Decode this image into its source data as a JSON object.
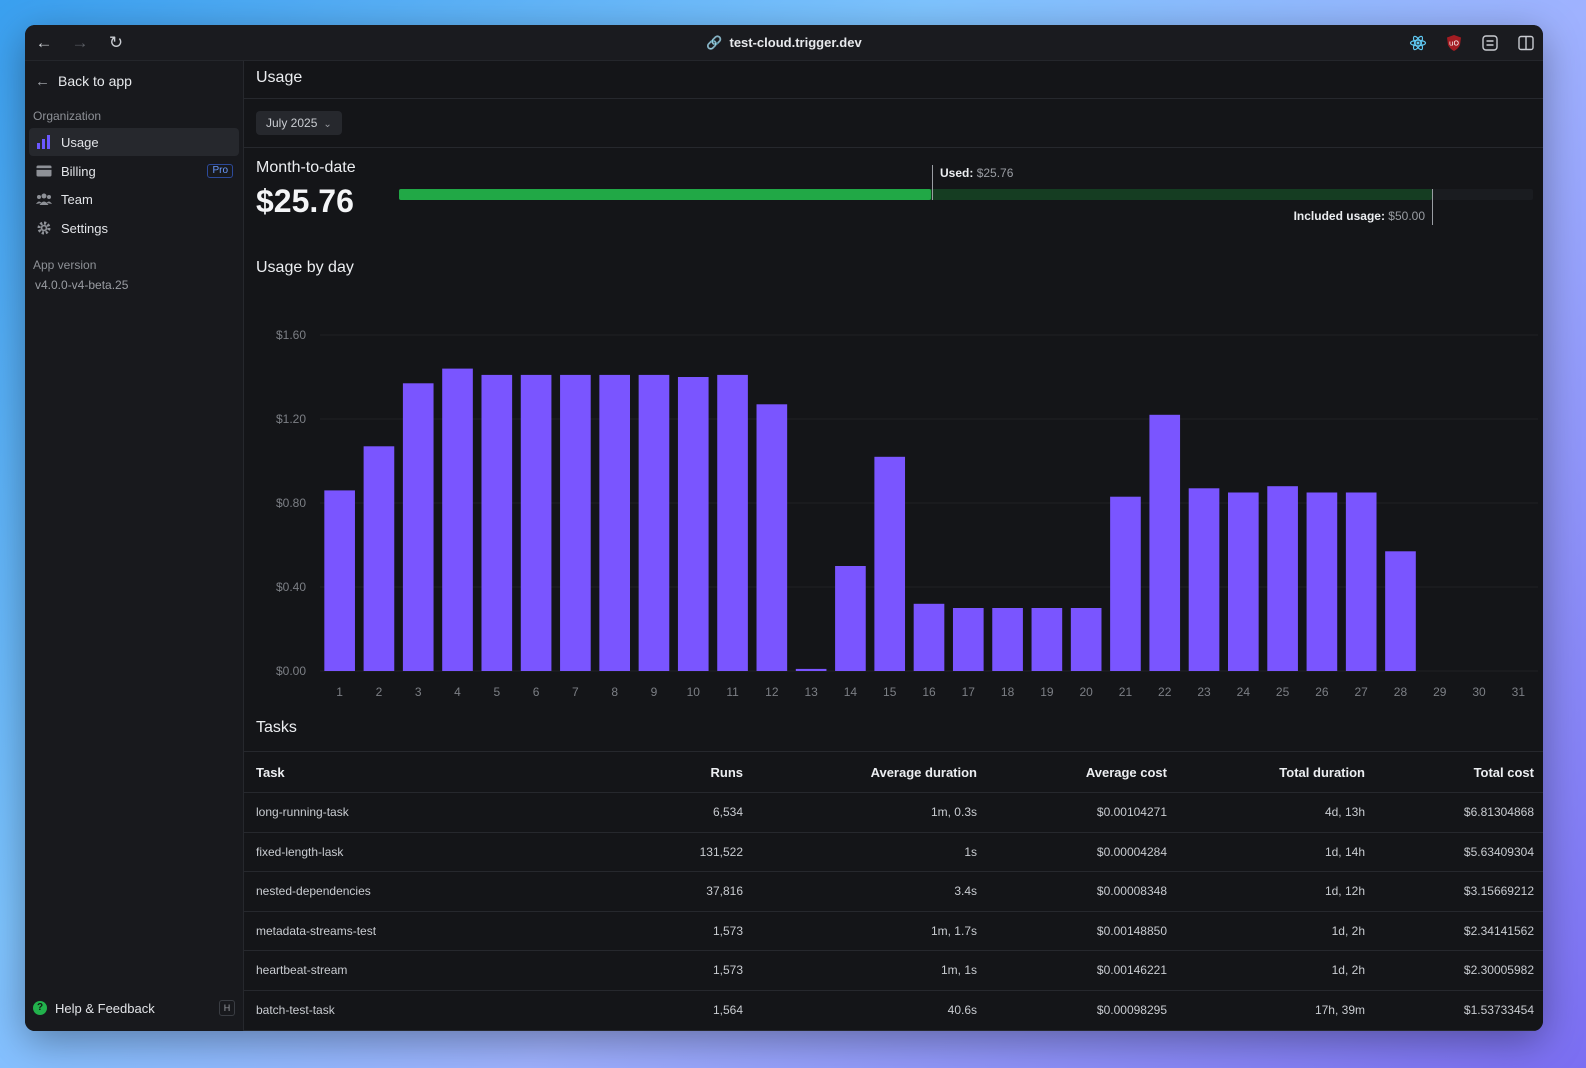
{
  "browser": {
    "url": "test-cloud.trigger.dev"
  },
  "sidebar": {
    "back_label": "Back to app",
    "org_section": "Organization",
    "items": [
      {
        "label": "Usage",
        "icon": "bar-chart-icon"
      },
      {
        "label": "Billing",
        "icon": "credit-card-icon",
        "badge": "Pro"
      },
      {
        "label": "Team",
        "icon": "users-icon"
      },
      {
        "label": "Settings",
        "icon": "gear-icon"
      }
    ],
    "version_label": "App version",
    "version": "v4.0.0-v4-beta.25",
    "help_label": "Help & Feedback",
    "help_shortcut": "H"
  },
  "page": {
    "title": "Usage",
    "month": "July 2025",
    "mtd_label": "Month-to-date",
    "mtd_value": "$25.76",
    "used_key": "Used:",
    "used_value": "$25.76",
    "included_key": "Included usage:",
    "included_value": "$50.00",
    "used_amount": 25.76,
    "included_amount": 50.0,
    "chart_title": "Usage by day",
    "tasks_title": "Tasks"
  },
  "colors": {
    "bar": "#7a55ff",
    "used": "#21a846",
    "included": "#153d22"
  },
  "chart_data": {
    "type": "bar",
    "categories": [
      "1",
      "2",
      "3",
      "4",
      "5",
      "6",
      "7",
      "8",
      "9",
      "10",
      "11",
      "12",
      "13",
      "14",
      "15",
      "16",
      "17",
      "18",
      "19",
      "20",
      "21",
      "22",
      "23",
      "24",
      "25",
      "26",
      "27",
      "28",
      "29",
      "30",
      "31"
    ],
    "values": [
      0.86,
      1.07,
      1.37,
      1.44,
      1.41,
      1.41,
      1.41,
      1.41,
      1.41,
      1.4,
      1.41,
      1.27,
      0.01,
      0.5,
      1.02,
      0.32,
      0.3,
      0.3,
      0.3,
      0.3,
      0.83,
      1.22,
      0.87,
      0.85,
      0.88,
      0.85,
      0.85,
      0.57,
      0,
      0,
      0
    ],
    "yticks": [
      "$0.00",
      "$0.40",
      "$0.80",
      "$1.20",
      "$1.60"
    ],
    "ylim": [
      0,
      1.6
    ],
    "title": "Usage by day",
    "grid": true
  },
  "table": {
    "headers": [
      "Task",
      "Runs",
      "Average duration",
      "Average cost",
      "Total duration",
      "Total cost"
    ],
    "rows": [
      [
        "long-running-task",
        "6,534",
        "1m, 0.3s",
        "$0.00104271",
        "4d, 13h",
        "$6.81304868"
      ],
      [
        "fixed-length-lask",
        "131,522",
        "1s",
        "$0.00004284",
        "1d, 14h",
        "$5.63409304"
      ],
      [
        "nested-dependencies",
        "37,816",
        "3.4s",
        "$0.00008348",
        "1d, 12h",
        "$3.15669212"
      ],
      [
        "metadata-streams-test",
        "1,573",
        "1m, 1.7s",
        "$0.00148850",
        "1d, 2h",
        "$2.34141562"
      ],
      [
        "heartbeat-stream",
        "1,573",
        "1m, 1s",
        "$0.00146221",
        "1d, 2h",
        "$2.30005982"
      ],
      [
        "batch-test-task",
        "1,564",
        "40.6s",
        "$0.00098295",
        "17h, 39m",
        "$1.53733454"
      ]
    ]
  }
}
